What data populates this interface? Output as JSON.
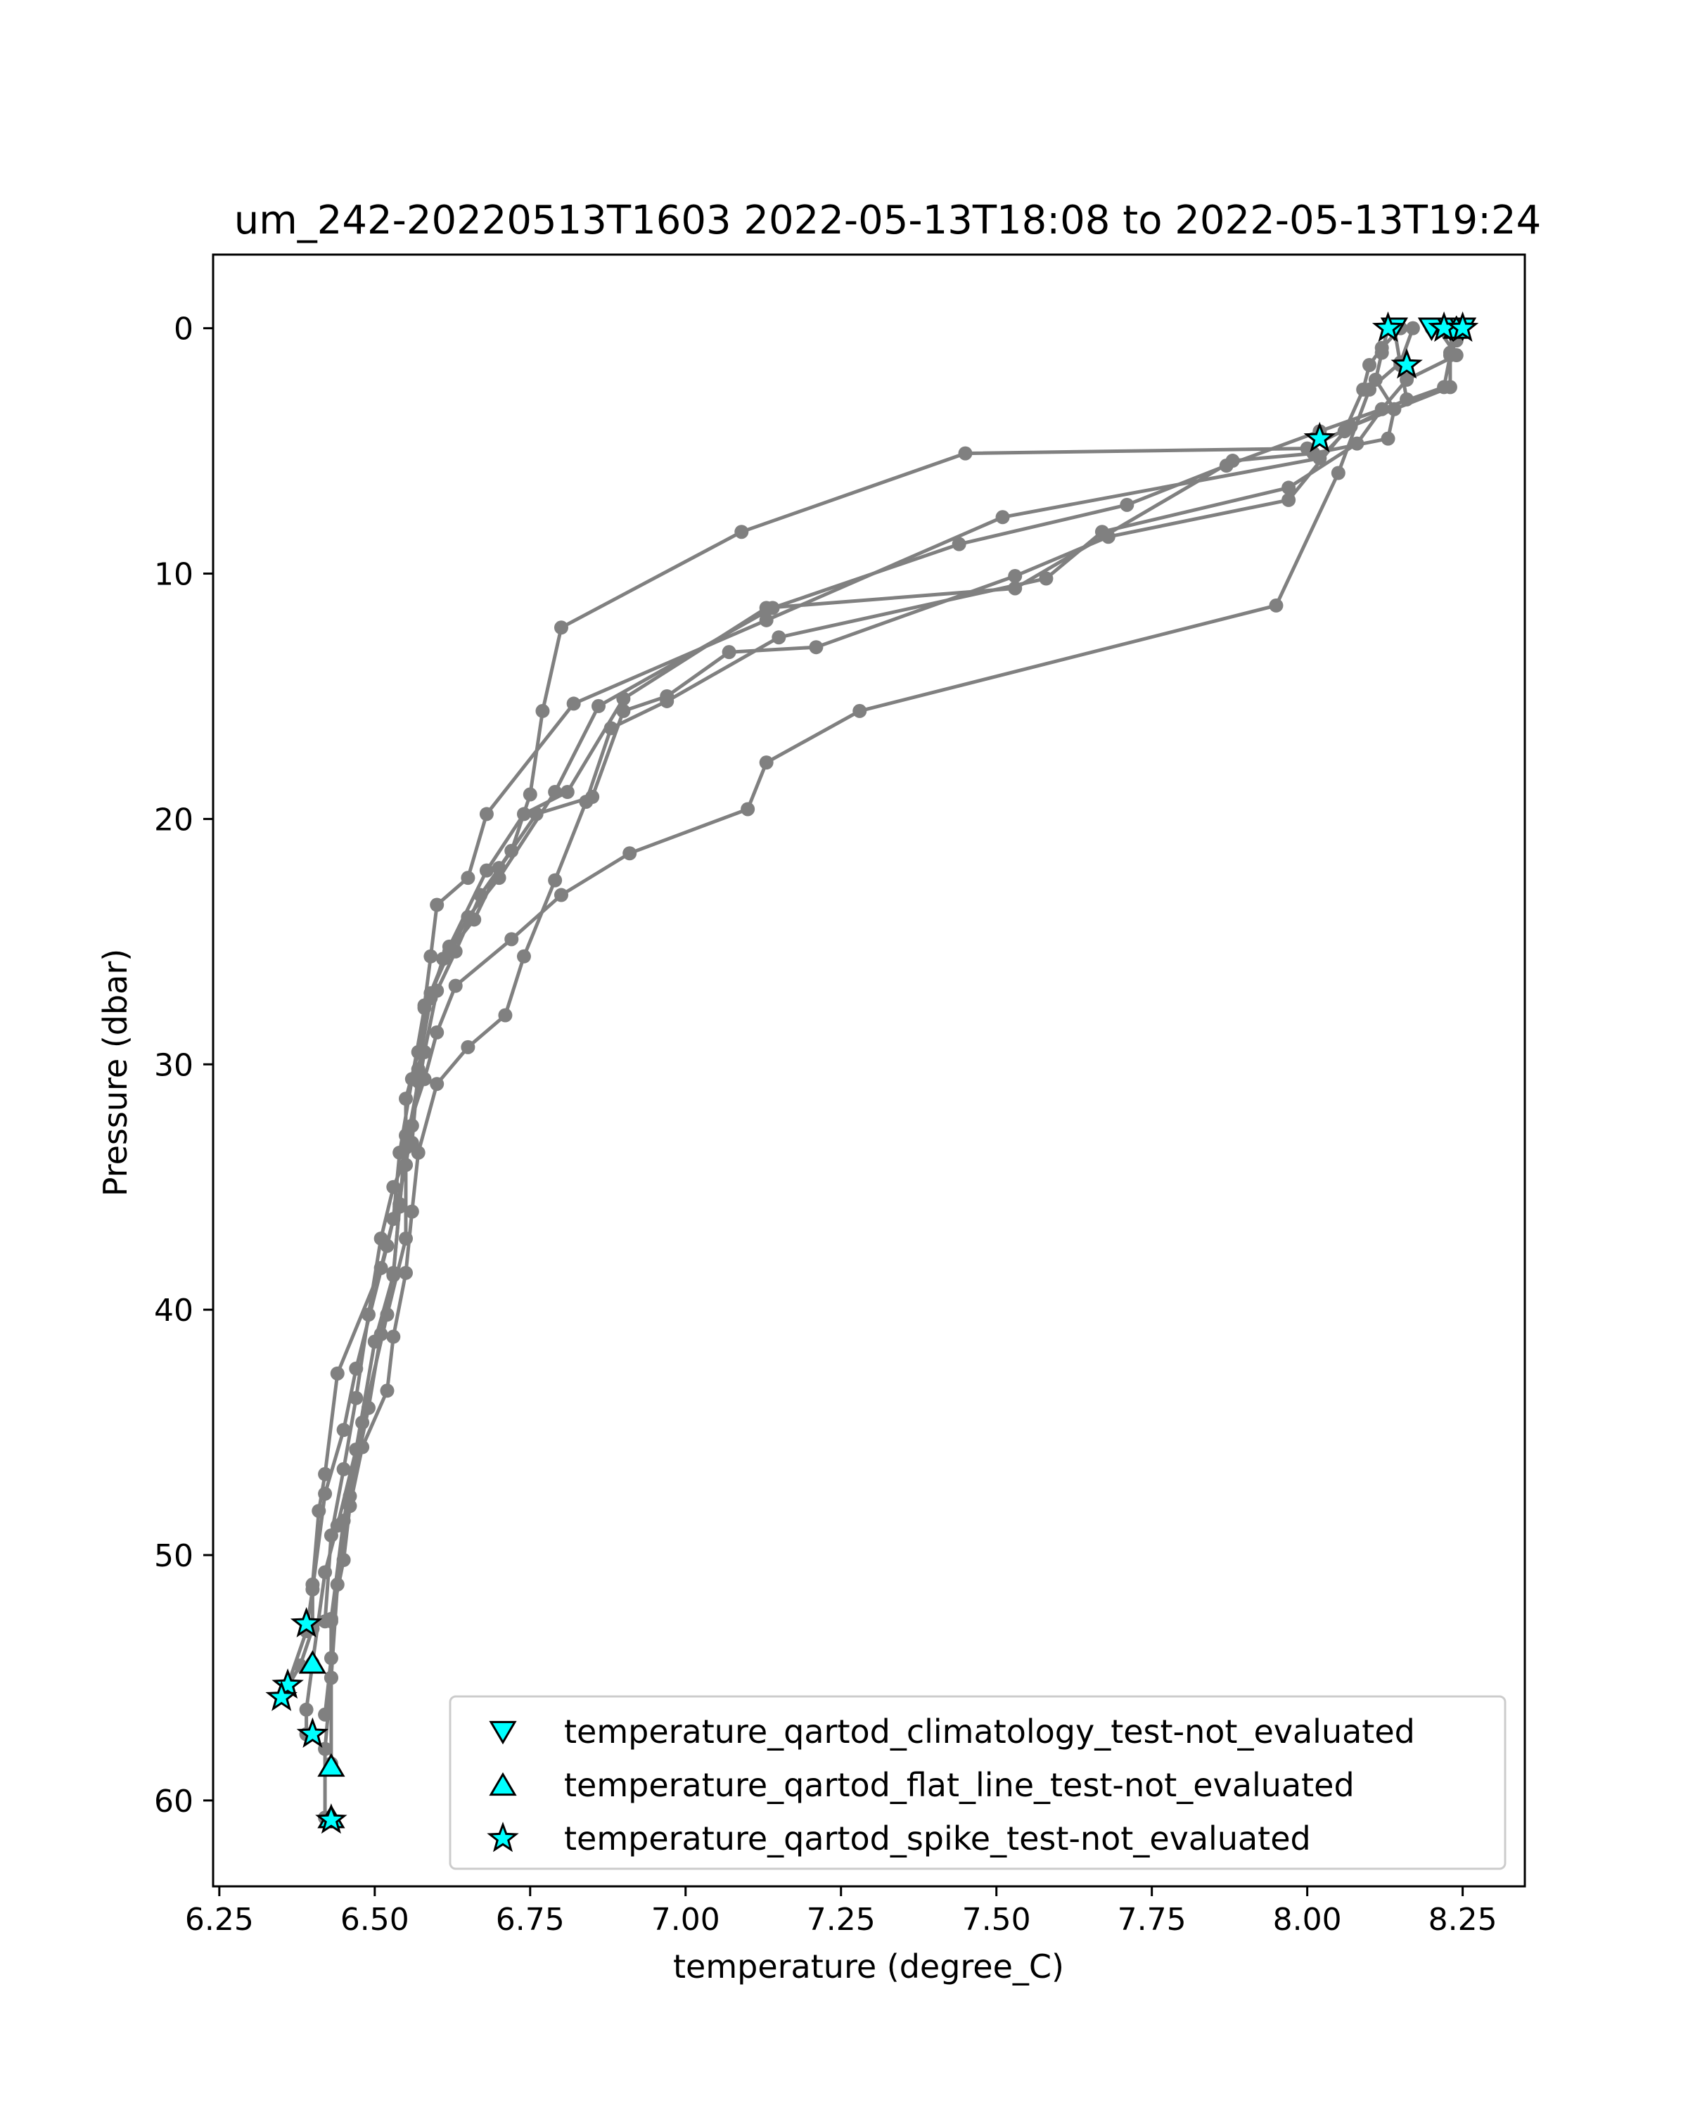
{
  "chart_data": {
    "type": "line",
    "title": "um_242-20220513T1603 2022-05-13T18:08 to 2022-05-13T19:24",
    "xlabel": "temperature (degree_C)",
    "ylabel": "Pressure (dbar)",
    "xlim": [
      6.24,
      8.35
    ],
    "ylim": [
      63.5,
      -3.0
    ],
    "y_inverted": true,
    "x_ticks": [
      6.25,
      6.5,
      6.75,
      7.0,
      7.25,
      7.5,
      7.75,
      8.0,
      8.25
    ],
    "x_tick_labels": [
      "6.25",
      "6.50",
      "6.75",
      "7.00",
      "7.25",
      "7.50",
      "7.75",
      "8.00",
      "8.25"
    ],
    "y_ticks": [
      0,
      10,
      20,
      30,
      40,
      50,
      60
    ],
    "y_tick_labels": [
      "0",
      "10",
      "20",
      "30",
      "40",
      "50",
      "60"
    ],
    "grid": false,
    "legend_position": "lower-right",
    "colors": {
      "profile_line": "#808080",
      "flag_marker_fill": "#00FFFF",
      "flag_marker_edge": "#000000"
    },
    "series": [
      {
        "x": [
          8.13,
          8.12,
          8.11,
          8.14,
          8.13,
          8.01,
          7.88,
          7.53,
          7.13,
          6.9,
          6.81,
          6.74,
          6.68,
          6.62,
          6.58,
          6.56,
          6.54,
          6.53,
          6.51,
          6.44,
          6.42,
          6.41,
          6.4,
          6.4,
          6.38,
          6.35
        ],
        "y": [
          0,
          1.0,
          2.1,
          3.3,
          4.5,
          5.1,
          5.4,
          10.6,
          11.4,
          15.1,
          18.9,
          19.8,
          22.1,
          25.2,
          27.7,
          30.6,
          33.6,
          36.3,
          38.3,
          42.6,
          46.7,
          48.2,
          51.2,
          53.0,
          54.5,
          55.8
        ]
      },
      {
        "x": [
          8.2,
          8.24,
          8.23,
          8.22,
          8.02,
          7.87,
          7.71,
          7.44,
          7.14,
          6.86,
          6.79,
          6.7,
          6.65,
          6.62,
          6.59,
          6.57,
          6.55,
          6.55,
          6.52,
          6.47,
          6.45,
          6.42,
          6.4,
          6.39,
          6.36
        ],
        "y": [
          0,
          0.5,
          1.1,
          2.4,
          4.2,
          5.6,
          7.2,
          8.8,
          11.4,
          15.4,
          18.9,
          22.4,
          24.0,
          25.4,
          27.1,
          29.5,
          31.4,
          34.1,
          37.4,
          42.4,
          44.9,
          47.5,
          51.4,
          53.1,
          55.3
        ]
      },
      {
        "x": [
          8.25,
          8.23,
          8.23,
          8.07,
          8.02,
          7.51,
          7.13,
          6.82,
          6.68,
          6.65,
          6.6,
          6.59,
          6.58,
          6.57,
          6.55,
          6.54,
          6.53,
          6.5,
          6.47,
          6.44,
          6.42,
          6.4,
          6.39,
          6.39
        ],
        "y": [
          0,
          1.0,
          2.4,
          4.0,
          5.3,
          7.7,
          11.9,
          15.3,
          19.8,
          22.4,
          23.5,
          25.6,
          27.6,
          30.7,
          33.4,
          35.7,
          38.6,
          41.3,
          45.7,
          48.8,
          50.7,
          54.4,
          56.3,
          57.3
        ]
      },
      {
        "x": [
          8.15,
          8.12,
          8.1,
          8.09,
          8.06,
          7.97,
          7.68,
          7.53,
          7.21,
          7.07,
          6.97,
          6.9,
          6.85,
          6.76,
          6.7,
          6.66,
          6.61,
          6.59,
          6.57,
          6.56,
          6.53,
          6.51,
          6.49,
          6.47,
          6.45,
          6.43,
          6.42
        ],
        "y": [
          0,
          0.8,
          1.5,
          2.5,
          4.2,
          7.0,
          8.5,
          10.1,
          13.0,
          13.2,
          15.0,
          15.6,
          19.1,
          19.8,
          22.0,
          24.1,
          25.7,
          27.3,
          30.2,
          33.2,
          35.0,
          37.1,
          40.2,
          43.6,
          46.5,
          49.2,
          52.7
        ]
      },
      {
        "x": [
          8.21,
          8.24,
          8.16,
          8.12,
          8.08,
          7.97,
          7.67,
          7.58,
          7.15,
          6.97,
          6.88,
          6.84,
          6.79,
          6.74,
          6.71,
          6.65,
          6.6,
          6.57,
          6.56,
          6.55,
          6.53,
          6.52,
          6.48,
          6.46,
          6.45,
          6.43,
          6.43,
          6.42
        ],
        "y": [
          0,
          1.1,
          2.1,
          3.3,
          4.7,
          6.5,
          8.3,
          10.2,
          12.6,
          15.2,
          16.3,
          19.3,
          22.5,
          25.6,
          28.0,
          29.3,
          30.8,
          33.6,
          36.0,
          38.5,
          41.1,
          43.3,
          45.6,
          48.0,
          50.2,
          52.7,
          54.2,
          56.5
        ]
      },
      {
        "x": [
          8.14,
          8.15,
          8.16,
          8.0,
          7.45,
          7.09,
          6.8,
          6.77,
          6.75,
          6.72,
          6.67,
          6.63,
          6.6,
          6.58,
          6.56,
          6.55,
          6.55,
          6.52,
          6.48,
          6.45,
          6.43,
          6.43,
          6.42,
          6.42
        ],
        "y": [
          0,
          1.5,
          2.9,
          4.9,
          5.1,
          8.3,
          12.2,
          15.6,
          19.0,
          21.3,
          23.1,
          25.4,
          27.0,
          29.5,
          32.5,
          34.1,
          37.1,
          40.2,
          44.6,
          48.6,
          52.6,
          55.0,
          57.9,
          60.7
        ]
      },
      {
        "x": [
          8.17,
          8.15,
          8.1,
          8.05,
          7.95,
          7.28,
          7.13,
          7.1,
          6.91,
          6.8,
          6.72,
          6.63,
          6.6,
          6.58,
          6.55,
          6.54,
          6.53,
          6.51,
          6.49,
          6.46,
          6.44,
          6.43,
          6.43
        ],
        "y": [
          0,
          1.4,
          2.5,
          5.9,
          11.3,
          15.6,
          17.7,
          19.6,
          21.4,
          23.1,
          24.9,
          26.8,
          28.7,
          30.6,
          32.9,
          35.8,
          38.5,
          41.0,
          44.0,
          47.6,
          51.2,
          55.0,
          58.5
        ]
      }
    ],
    "flags": [
      {
        "name": "temperature_qartod_climatology_test-not_evaluated",
        "marker": "triangle-down",
        "points": [
          [
            8.14,
            0
          ],
          [
            8.2,
            0
          ],
          [
            8.23,
            0
          ],
          [
            8.25,
            0
          ]
        ]
      },
      {
        "name": "temperature_qartod_flat_line_test-not_evaluated",
        "marker": "triangle-up",
        "points": [
          [
            8.24,
            0
          ],
          [
            6.4,
            54.4
          ],
          [
            6.43,
            58.6
          ],
          [
            6.43,
            60.7
          ]
        ]
      },
      {
        "name": "temperature_qartod_spike_test-not_evaluated",
        "marker": "star",
        "points": [
          [
            8.13,
            0
          ],
          [
            8.22,
            0
          ],
          [
            8.25,
            0
          ],
          [
            8.16,
            1.5
          ],
          [
            8.02,
            4.5
          ],
          [
            6.39,
            52.8
          ],
          [
            6.36,
            55.3
          ],
          [
            6.35,
            55.8
          ],
          [
            6.4,
            57.3
          ],
          [
            6.43,
            60.8
          ]
        ]
      }
    ]
  }
}
